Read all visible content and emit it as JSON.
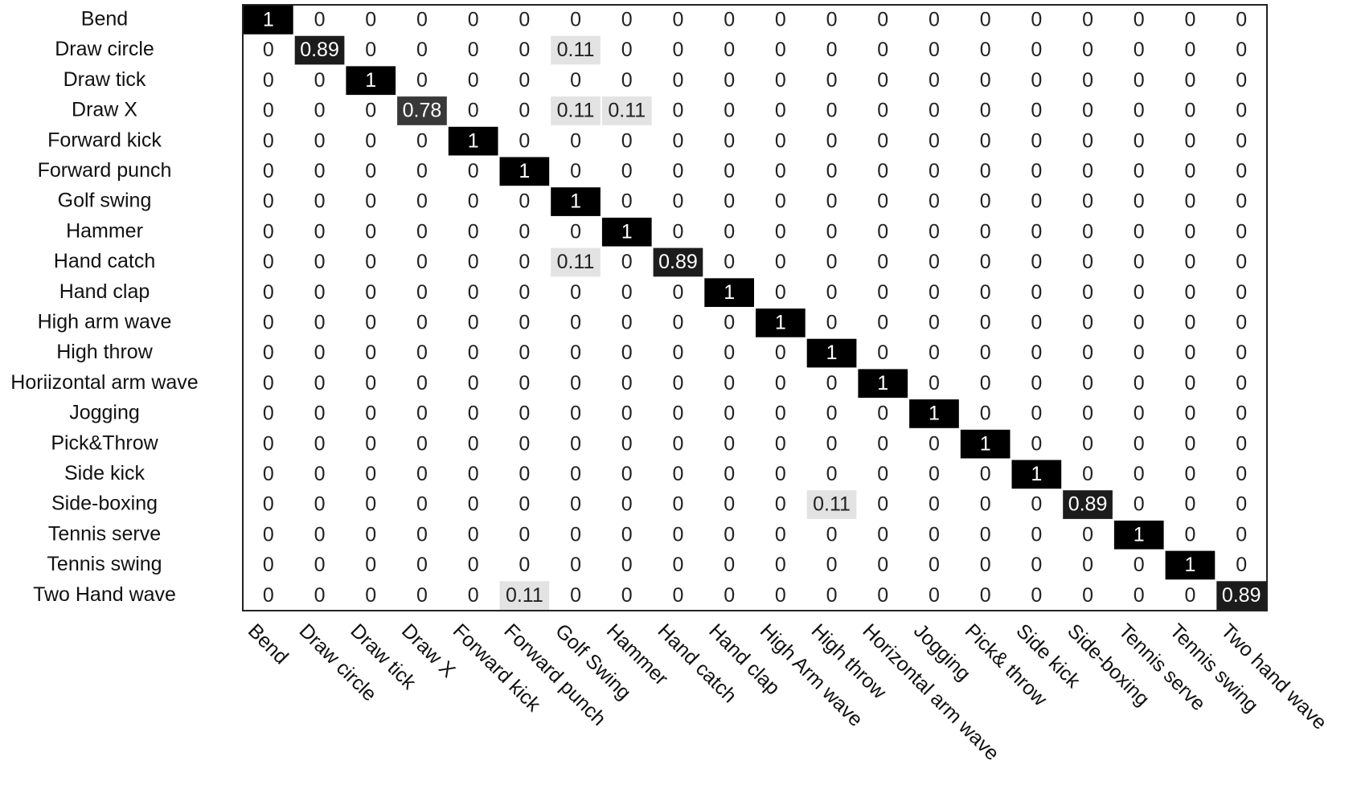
{
  "chart_data": {
    "type": "heatmap",
    "x": [
      "Bend",
      "Draw circle",
      "Draw tick",
      "Draw X",
      "Forward kick",
      "Forward punch",
      "Golf Swing",
      "Hammer",
      "Hand catch",
      "Hand clap",
      "High Arm wave",
      "High throw",
      "Horizontal arm wave",
      "Jogging",
      "Pick& throw",
      "Side kick",
      "Side-boxing",
      "Tennis serve",
      "Tennis swing",
      "Two hand wave"
    ],
    "y": [
      "Bend",
      "Draw circle",
      "Draw tick",
      "Draw X",
      "Forward kick",
      "Forward punch",
      "Golf swing",
      "Hammer",
      "Hand catch",
      "Hand clap",
      "High arm wave",
      "High throw",
      "Horiizontal arm wave",
      "Jogging",
      "Pick&Throw",
      "Side kick",
      "Side-boxing",
      "Tennis serve",
      "Tennis swing",
      "Two Hand wave"
    ],
    "values": [
      [
        1,
        0,
        0,
        0,
        0,
        0,
        0,
        0,
        0,
        0,
        0,
        0,
        0,
        0,
        0,
        0,
        0,
        0,
        0,
        0
      ],
      [
        0,
        0.89,
        0,
        0,
        0,
        0,
        0.11,
        0,
        0,
        0,
        0,
        0,
        0,
        0,
        0,
        0,
        0,
        0,
        0,
        0
      ],
      [
        0,
        0,
        1,
        0,
        0,
        0,
        0,
        0,
        0,
        0,
        0,
        0,
        0,
        0,
        0,
        0,
        0,
        0,
        0,
        0
      ],
      [
        0,
        0,
        0,
        0.78,
        0,
        0,
        0.11,
        0.11,
        0,
        0,
        0,
        0,
        0,
        0,
        0,
        0,
        0,
        0,
        0,
        0
      ],
      [
        0,
        0,
        0,
        0,
        1,
        0,
        0,
        0,
        0,
        0,
        0,
        0,
        0,
        0,
        0,
        0,
        0,
        0,
        0,
        0
      ],
      [
        0,
        0,
        0,
        0,
        0,
        1,
        0,
        0,
        0,
        0,
        0,
        0,
        0,
        0,
        0,
        0,
        0,
        0,
        0,
        0
      ],
      [
        0,
        0,
        0,
        0,
        0,
        0,
        1,
        0,
        0,
        0,
        0,
        0,
        0,
        0,
        0,
        0,
        0,
        0,
        0,
        0
      ],
      [
        0,
        0,
        0,
        0,
        0,
        0,
        0,
        1,
        0,
        0,
        0,
        0,
        0,
        0,
        0,
        0,
        0,
        0,
        0,
        0
      ],
      [
        0,
        0,
        0,
        0,
        0,
        0,
        0.11,
        0,
        0.89,
        0,
        0,
        0,
        0,
        0,
        0,
        0,
        0,
        0,
        0,
        0
      ],
      [
        0,
        0,
        0,
        0,
        0,
        0,
        0,
        0,
        0,
        1,
        0,
        0,
        0,
        0,
        0,
        0,
        0,
        0,
        0,
        0
      ],
      [
        0,
        0,
        0,
        0,
        0,
        0,
        0,
        0,
        0,
        0,
        1,
        0,
        0,
        0,
        0,
        0,
        0,
        0,
        0,
        0
      ],
      [
        0,
        0,
        0,
        0,
        0,
        0,
        0,
        0,
        0,
        0,
        0,
        1,
        0,
        0,
        0,
        0,
        0,
        0,
        0,
        0
      ],
      [
        0,
        0,
        0,
        0,
        0,
        0,
        0,
        0,
        0,
        0,
        0,
        0,
        1,
        0,
        0,
        0,
        0,
        0,
        0,
        0
      ],
      [
        0,
        0,
        0,
        0,
        0,
        0,
        0,
        0,
        0,
        0,
        0,
        0,
        0,
        1,
        0,
        0,
        0,
        0,
        0,
        0
      ],
      [
        0,
        0,
        0,
        0,
        0,
        0,
        0,
        0,
        0,
        0,
        0,
        0,
        0,
        0,
        1,
        0,
        0,
        0,
        0,
        0
      ],
      [
        0,
        0,
        0,
        0,
        0,
        0,
        0,
        0,
        0,
        0,
        0,
        0,
        0,
        0,
        0,
        1,
        0,
        0,
        0,
        0
      ],
      [
        0,
        0,
        0,
        0,
        0,
        0,
        0,
        0,
        0,
        0,
        0,
        0.11,
        0,
        0,
        0,
        0,
        0.89,
        0,
        0,
        0
      ],
      [
        0,
        0,
        0,
        0,
        0,
        0,
        0,
        0,
        0,
        0,
        0,
        0,
        0,
        0,
        0,
        0,
        0,
        1,
        0,
        0
      ],
      [
        0,
        0,
        0,
        0,
        0,
        0,
        0,
        0,
        0,
        0,
        0,
        0,
        0,
        0,
        0,
        0,
        0,
        0,
        1,
        0
      ],
      [
        0,
        0,
        0,
        0,
        0,
        0.11,
        0,
        0,
        0,
        0,
        0,
        0,
        0,
        0,
        0,
        0,
        0,
        0,
        0,
        0.89
      ]
    ]
  }
}
